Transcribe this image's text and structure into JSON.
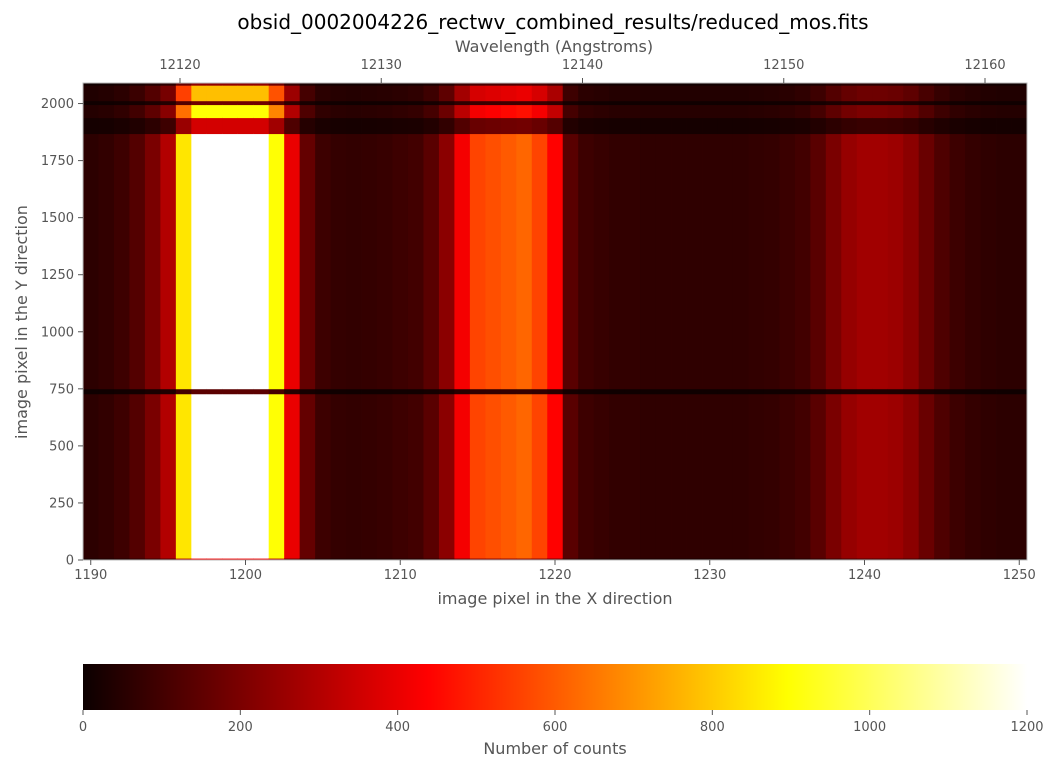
{
  "chart_data": {
    "type": "heatmap",
    "title": "obsid_0002004226_rectwv_combined_results/reduced_mos.fits",
    "xlabel": "image pixel in the X direction",
    "ylabel": "image pixel in the Y direction",
    "secondary_xlabel": "Wavelength (Angstroms)",
    "colorbar_label": "Number of counts",
    "colormap": "hot",
    "xlim": [
      1189.5,
      1250.5
    ],
    "ylim": [
      0,
      2090
    ],
    "x_ticks": [
      "1190",
      "1200",
      "1210",
      "1220",
      "1230",
      "1240",
      "1250"
    ],
    "y_ticks": [
      "0",
      "250",
      "500",
      "750",
      "1000",
      "1250",
      "1500",
      "1750",
      "2000"
    ],
    "wavelength_ticks": [
      "12120",
      "12130",
      "12140",
      "12150",
      "12160"
    ],
    "colorbar_ticks": [
      "0",
      "200",
      "400",
      "600",
      "800",
      "1000",
      "1200"
    ],
    "color_range": [
      0,
      1200
    ],
    "column_profile": {
      "x": [
        1190,
        1191,
        1192,
        1193,
        1194,
        1195,
        1196,
        1197,
        1198,
        1199,
        1200,
        1201,
        1202,
        1203,
        1204,
        1205,
        1206,
        1207,
        1208,
        1209,
        1210,
        1211,
        1212,
        1213,
        1214,
        1215,
        1216,
        1217,
        1218,
        1219,
        1220,
        1221,
        1222,
        1223,
        1224,
        1225,
        1226,
        1227,
        1228,
        1229,
        1230,
        1231,
        1232,
        1233,
        1234,
        1235,
        1236,
        1237,
        1238,
        1239,
        1240,
        1241,
        1242,
        1243,
        1244,
        1245,
        1246,
        1247,
        1248,
        1249,
        1250
      ],
      "counts": [
        60,
        70,
        90,
        130,
        200,
        300,
        850,
        1200,
        1200,
        1200,
        1200,
        1200,
        900,
        400,
        160,
        90,
        75,
        70,
        75,
        80,
        90,
        100,
        140,
        230,
        420,
        560,
        580,
        600,
        620,
        560,
        440,
        140,
        90,
        80,
        70,
        70,
        65,
        65,
        65,
        65,
        65,
        65,
        65,
        70,
        75,
        85,
        100,
        140,
        200,
        250,
        270,
        270,
        260,
        230,
        170,
        120,
        90,
        75,
        65,
        60,
        60
      ]
    },
    "dark_rows": [
      [
        728,
        750
      ],
      [
        1868,
        1938
      ],
      [
        1995,
        2012
      ]
    ],
    "faint_rows": [
      [
        0,
        8
      ],
      [
        2080,
        2090
      ]
    ]
  }
}
